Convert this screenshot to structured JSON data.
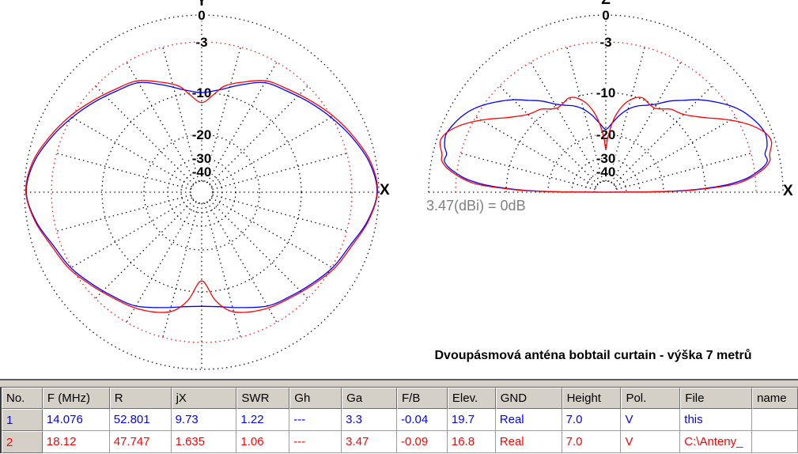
{
  "title": "Dvoupásmová anténa bobtail curtain - výška 7 metrů",
  "colors": {
    "series1": "#0000ff",
    "series2": "#ff0000",
    "grid": "#000000",
    "ring_minus3db": "#ff0000",
    "annotation": "#808080",
    "header_face": "#d4d0c8"
  },
  "chart_data": [
    {
      "type": "polar",
      "plane": "azimuth-XY",
      "axis_horizontal": "X",
      "axis_vertical": "Y",
      "units": "dB",
      "rings_db": [
        0,
        -3,
        -10,
        -20,
        -30,
        -40
      ],
      "grid_spoke_step_deg": 15,
      "series": [
        {
          "name": "14.076",
          "color": "#0000ff",
          "points": [
            [
              0,
              -0.2
            ],
            [
              10,
              -0.75
            ],
            [
              20,
              -1.9
            ],
            [
              30,
              -3.1
            ],
            [
              40,
              -4.4
            ],
            [
              50,
              -5.5
            ],
            [
              60,
              -6.3
            ],
            [
              70,
              -8
            ],
            [
              80,
              -9.4
            ],
            [
              90,
              -10
            ],
            [
              100,
              -9.4
            ],
            [
              110,
              -8
            ],
            [
              120,
              -6.3
            ],
            [
              130,
              -5.5
            ],
            [
              140,
              -4.4
            ],
            [
              150,
              -3.1
            ],
            [
              160,
              -1.9
            ],
            [
              170,
              -0.75
            ],
            [
              180,
              -0.2
            ],
            [
              190,
              -1
            ],
            [
              200,
              -2.2
            ],
            [
              210,
              -2.9
            ],
            [
              220,
              -4
            ],
            [
              230,
              -4.9
            ],
            [
              240,
              -5.6
            ],
            [
              252,
              -7
            ],
            [
              262,
              -7.8
            ],
            [
              270,
              -8
            ],
            [
              278,
              -7.8
            ],
            [
              288,
              -7
            ],
            [
              300,
              -5.6
            ],
            [
              310,
              -4.9
            ],
            [
              320,
              -4
            ],
            [
              330,
              -2.9
            ],
            [
              340,
              -2.2
            ],
            [
              350,
              -1
            ]
          ]
        },
        {
          "name": "18.12",
          "color": "#ff0000",
          "points": [
            [
              0,
              -0.15
            ],
            [
              10,
              -0.6
            ],
            [
              20,
              -1.7
            ],
            [
              30,
              -2.8
            ],
            [
              40,
              -4.1
            ],
            [
              50,
              -5.2
            ],
            [
              60,
              -6
            ],
            [
              70,
              -7.6
            ],
            [
              78,
              -8.8
            ],
            [
              83,
              -10.3
            ],
            [
              90,
              -12.4
            ],
            [
              97,
              -10.3
            ],
            [
              102,
              -8.8
            ],
            [
              110,
              -7.6
            ],
            [
              120,
              -6
            ],
            [
              130,
              -5.2
            ],
            [
              140,
              -4.1
            ],
            [
              150,
              -2.8
            ],
            [
              160,
              -1.7
            ],
            [
              170,
              -0.6
            ],
            [
              180,
              -0.15
            ],
            [
              190,
              -0.9
            ],
            [
              200,
              -2
            ],
            [
              210,
              -2.7
            ],
            [
              220,
              -3.8
            ],
            [
              230,
              -4.7
            ],
            [
              240,
              -5.3
            ],
            [
              250,
              -6.1
            ],
            [
              257,
              -7
            ],
            [
              263,
              -8.8
            ],
            [
              270,
              -12.6
            ],
            [
              277,
              -8.8
            ],
            [
              283,
              -7
            ],
            [
              290,
              -6.1
            ],
            [
              300,
              -5.3
            ],
            [
              310,
              -4.7
            ],
            [
              320,
              -3.8
            ],
            [
              330,
              -2.7
            ],
            [
              340,
              -2
            ],
            [
              350,
              -0.9
            ]
          ]
        }
      ]
    },
    {
      "type": "polar-half",
      "plane": "elevation-XZ",
      "axis_horizontal": "X",
      "axis_vertical": "Z",
      "units": "dB",
      "rings_db": [
        0,
        -3,
        -10,
        -20,
        -30,
        -40
      ],
      "grid_spoke_step_deg": 15,
      "annotation": "3.47(dBi) = 0dB",
      "series": [
        {
          "name": "14.076",
          "color": "#0000ff",
          "points": [
            [
              0,
              -50
            ],
            [
              0.4,
              -28
            ],
            [
              0.8,
              -19
            ],
            [
              1.3,
              -14.5
            ],
            [
              2,
              -11
            ],
            [
              3,
              -8
            ],
            [
              4,
              -6.2
            ],
            [
              5.5,
              -4.3
            ],
            [
              7,
              -3.1
            ],
            [
              9,
              -2
            ],
            [
              11,
              -1.4
            ],
            [
              13.5,
              -1.5
            ],
            [
              16,
              -1.05
            ],
            [
              19.7,
              -0.8
            ],
            [
              23,
              -1
            ],
            [
              27,
              -1.5
            ],
            [
              31,
              -2.1
            ],
            [
              35,
              -2.9
            ],
            [
              40,
              -4.3
            ],
            [
              45,
              -5.7
            ],
            [
              50,
              -7.2
            ],
            [
              55,
              -8.4
            ],
            [
              60,
              -9.7
            ],
            [
              65,
              -10.9
            ],
            [
              70,
              -11.9
            ],
            [
              75,
              -13.3
            ],
            [
              80,
              -15.2
            ],
            [
              85,
              -17.3
            ],
            [
              90,
              -18.8
            ],
            [
              95,
              -17.3
            ],
            [
              100,
              -15.2
            ],
            [
              105,
              -13.3
            ],
            [
              110,
              -11.9
            ],
            [
              115,
              -10.9
            ],
            [
              120,
              -9.7
            ],
            [
              125,
              -8.4
            ],
            [
              130,
              -7.2
            ],
            [
              135,
              -5.7
            ],
            [
              140,
              -4.3
            ],
            [
              145,
              -2.9
            ],
            [
              149,
              -2.1
            ],
            [
              153,
              -1.5
            ],
            [
              157,
              -1.05
            ],
            [
              160.3,
              -0.8
            ],
            [
              164,
              -1.05
            ],
            [
              166.5,
              -1.5
            ],
            [
              169,
              -1.4
            ],
            [
              171,
              -2
            ],
            [
              173,
              -3.1
            ],
            [
              174.5,
              -4.3
            ],
            [
              176,
              -6.2
            ],
            [
              177,
              -8
            ],
            [
              178,
              -11
            ],
            [
              178.7,
              -14.5
            ],
            [
              179.2,
              -19
            ],
            [
              179.6,
              -28
            ],
            [
              180,
              -50
            ]
          ]
        },
        {
          "name": "18.12",
          "color": "#ff0000",
          "points": [
            [
              0,
              -50
            ],
            [
              0.4,
              -26
            ],
            [
              0.8,
              -18
            ],
            [
              1.3,
              -13.5
            ],
            [
              2,
              -10
            ],
            [
              3,
              -7.2
            ],
            [
              4,
              -5.3
            ],
            [
              5.5,
              -3.8
            ],
            [
              7,
              -2.7
            ],
            [
              9,
              -1.7
            ],
            [
              11,
              -1.1
            ],
            [
              13,
              -1
            ],
            [
              16.8,
              -0.45
            ],
            [
              20,
              -0.7
            ],
            [
              24,
              -1.7
            ],
            [
              28,
              -3
            ],
            [
              32,
              -4.7
            ],
            [
              36,
              -6.3
            ],
            [
              40,
              -7.5
            ],
            [
              44,
              -8.4
            ],
            [
              48,
              -8.9
            ],
            [
              52,
              -9.2
            ],
            [
              56,
              -9.9
            ],
            [
              60,
              -10.6
            ],
            [
              64,
              -10.3
            ],
            [
              68,
              -9.8
            ],
            [
              71,
              -9.9
            ],
            [
              74,
              -10.6
            ],
            [
              78,
              -12.2
            ],
            [
              82,
              -14.8
            ],
            [
              85,
              -17.5
            ],
            [
              88,
              -21.5
            ],
            [
              90,
              -26
            ],
            [
              92,
              -21.5
            ],
            [
              95,
              -17.5
            ],
            [
              98,
              -14.8
            ],
            [
              102,
              -12.2
            ],
            [
              106,
              -10.6
            ],
            [
              109,
              -9.9
            ],
            [
              112,
              -9.8
            ],
            [
              116,
              -10.3
            ],
            [
              120,
              -10.6
            ],
            [
              124,
              -9.9
            ],
            [
              128,
              -9.2
            ],
            [
              132,
              -8.9
            ],
            [
              136,
              -8.4
            ],
            [
              140,
              -7.5
            ],
            [
              144,
              -6.3
            ],
            [
              148,
              -4.7
            ],
            [
              152,
              -3
            ],
            [
              156,
              -1.7
            ],
            [
              160,
              -0.7
            ],
            [
              163.2,
              -0.45
            ],
            [
              167,
              -1
            ],
            [
              169,
              -1.1
            ],
            [
              171,
              -1.7
            ],
            [
              173,
              -2.7
            ],
            [
              174.5,
              -3.8
            ],
            [
              176,
              -5.3
            ],
            [
              177,
              -7.2
            ],
            [
              178,
              -10
            ],
            [
              178.7,
              -13.5
            ],
            [
              179.2,
              -18
            ],
            [
              179.6,
              -26
            ],
            [
              180,
              -50
            ]
          ]
        }
      ]
    }
  ],
  "table": {
    "columns": [
      "No.",
      "F (MHz)",
      "R",
      "jX",
      "SWR",
      "Gh",
      "Ga",
      "F/B",
      "Elev.",
      "GND",
      "Height",
      "Pol.",
      "File",
      "name"
    ],
    "rows": [
      {
        "color": "#0000ff",
        "cells": [
          "1",
          "14.076",
          "52.801",
          "9.73",
          "1.22",
          "---",
          "3.3",
          "-0.04",
          "19.7",
          "Real",
          "7.0",
          "V",
          "this",
          ""
        ]
      },
      {
        "color": "#ff0000",
        "cells": [
          "2",
          "18.12",
          "47.747",
          "1.635",
          "1.06",
          "---",
          "3.47",
          "-0.09",
          "16.8",
          "Real",
          "7.0",
          "V",
          "C:\\Anteny_",
          ""
        ]
      }
    ]
  }
}
